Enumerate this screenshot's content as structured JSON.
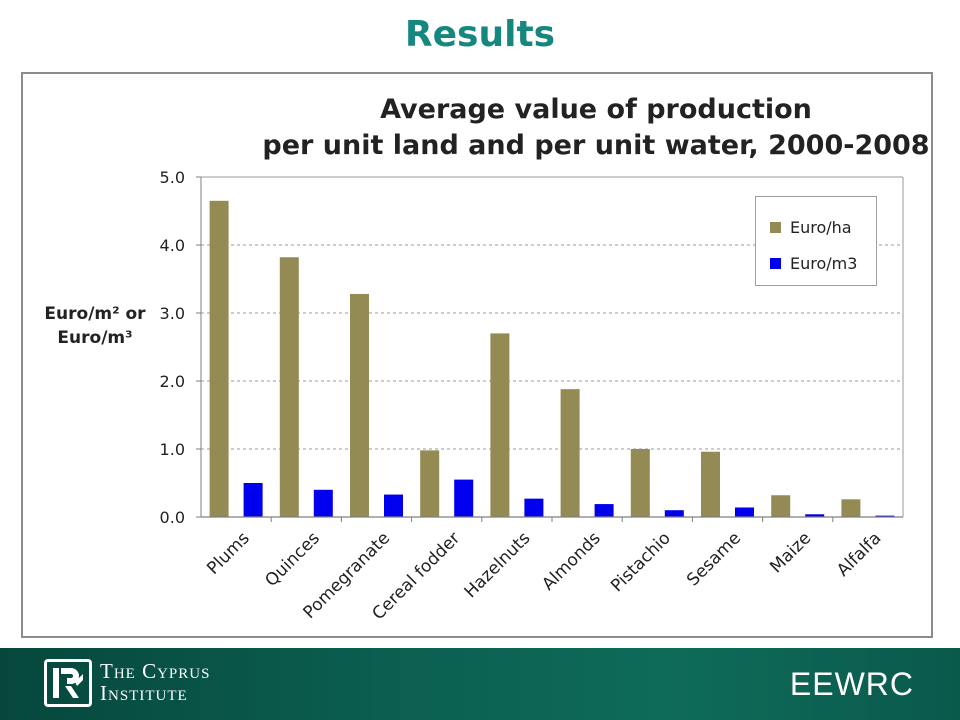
{
  "slide": {
    "title": "Results"
  },
  "footer": {
    "institute_line1": "The Cyprus",
    "institute_line2": "Institute",
    "brand": "EEWRC"
  },
  "chart_data": {
    "type": "bar",
    "title_line1": "Average value of production",
    "title_line2": "per unit land and per unit water, 2000-2008",
    "ylabel_line1": "Euro/m² or",
    "ylabel_line2": "Euro/m³",
    "xlabel": "",
    "ylim": [
      0,
      5
    ],
    "yticks": [
      "0.0",
      "1.0",
      "2.0",
      "3.0",
      "4.0",
      "5.0"
    ],
    "grid": true,
    "legend_position": "top-right",
    "categories": [
      "Plums",
      "Quinces",
      "Pomegranate",
      "Cereal fodder",
      "Hazelnuts",
      "Almonds",
      "Pistachio",
      "Sesame",
      "Maize",
      "Alfalfa"
    ],
    "series": [
      {
        "name": "Euro/ha",
        "color": "#948a54",
        "values": [
          4.65,
          3.82,
          3.28,
          0.98,
          2.7,
          1.88,
          1.0,
          0.96,
          0.32,
          0.26
        ]
      },
      {
        "name": "Euro/m3",
        "color": "#0000ee",
        "values": [
          0.5,
          0.4,
          0.33,
          0.55,
          0.27,
          0.19,
          0.1,
          0.14,
          0.04,
          0.02
        ]
      }
    ]
  }
}
